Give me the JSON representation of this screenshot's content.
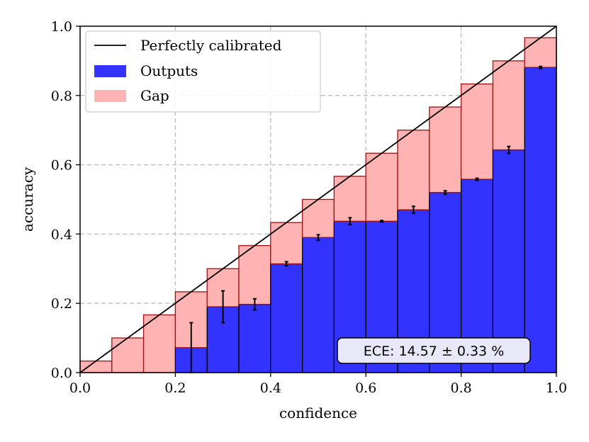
{
  "chart_data": {
    "type": "bar",
    "xlabel": "confidence",
    "ylabel": "accuracy",
    "xlim": [
      0,
      1
    ],
    "ylim": [
      0,
      1
    ],
    "x_ticks": [
      "0.0",
      "0.2",
      "0.4",
      "0.6",
      "0.8",
      "1.0"
    ],
    "y_ticks": [
      "0.0",
      "0.2",
      "0.4",
      "0.6",
      "0.8",
      "1.0"
    ],
    "grid": true,
    "legend_position": "top-left",
    "legend": [
      {
        "label": "Perfectly calibrated",
        "kind": "line",
        "color": "#000000"
      },
      {
        "label": "Outputs",
        "kind": "patch",
        "color": "#3333ff"
      },
      {
        "label": "Gap",
        "kind": "patch",
        "color": "#ffb3b3"
      }
    ],
    "annotation": "ECE: 14.57 ± 0.33 %",
    "colors": {
      "outputs": "#3333ff",
      "gap": "#ffb3b3",
      "gap_edge": "#a01010",
      "bar_edge": "#000000",
      "grid": "#bbbbbb",
      "annotation_bg": "#e8e8f8"
    },
    "bins": [
      {
        "left": 0.0,
        "right": 0.0667,
        "confidence": 0.0333,
        "accuracy": 0.0,
        "err": 0.0
      },
      {
        "left": 0.0667,
        "right": 0.1333,
        "confidence": 0.1,
        "accuracy": 0.0,
        "err": 0.0
      },
      {
        "left": 0.1333,
        "right": 0.2,
        "confidence": 0.1667,
        "accuracy": 0.0,
        "err": 0.0
      },
      {
        "left": 0.2,
        "right": 0.2667,
        "confidence": 0.2333,
        "accuracy": 0.072,
        "err": 0.072
      },
      {
        "left": 0.2667,
        "right": 0.3333,
        "confidence": 0.3,
        "accuracy": 0.19,
        "err": 0.046
      },
      {
        "left": 0.3333,
        "right": 0.4,
        "confidence": 0.3667,
        "accuracy": 0.197,
        "err": 0.016
      },
      {
        "left": 0.4,
        "right": 0.4667,
        "confidence": 0.4333,
        "accuracy": 0.314,
        "err": 0.006
      },
      {
        "left": 0.4667,
        "right": 0.5333,
        "confidence": 0.5,
        "accuracy": 0.39,
        "err": 0.008
      },
      {
        "left": 0.5333,
        "right": 0.6,
        "confidence": 0.5667,
        "accuracy": 0.437,
        "err": 0.01
      },
      {
        "left": 0.6,
        "right": 0.6667,
        "confidence": 0.6333,
        "accuracy": 0.437,
        "err": 0.002
      },
      {
        "left": 0.6667,
        "right": 0.7333,
        "confidence": 0.7,
        "accuracy": 0.47,
        "err": 0.01
      },
      {
        "left": 0.7333,
        "right": 0.8,
        "confidence": 0.7667,
        "accuracy": 0.52,
        "err": 0.005
      },
      {
        "left": 0.8,
        "right": 0.8667,
        "confidence": 0.8333,
        "accuracy": 0.558,
        "err": 0.003
      },
      {
        "left": 0.8667,
        "right": 0.9333,
        "confidence": 0.9,
        "accuracy": 0.643,
        "err": 0.01
      },
      {
        "left": 0.9333,
        "right": 1.0,
        "confidence": 0.9667,
        "accuracy": 0.881,
        "err": 0.003
      }
    ]
  }
}
